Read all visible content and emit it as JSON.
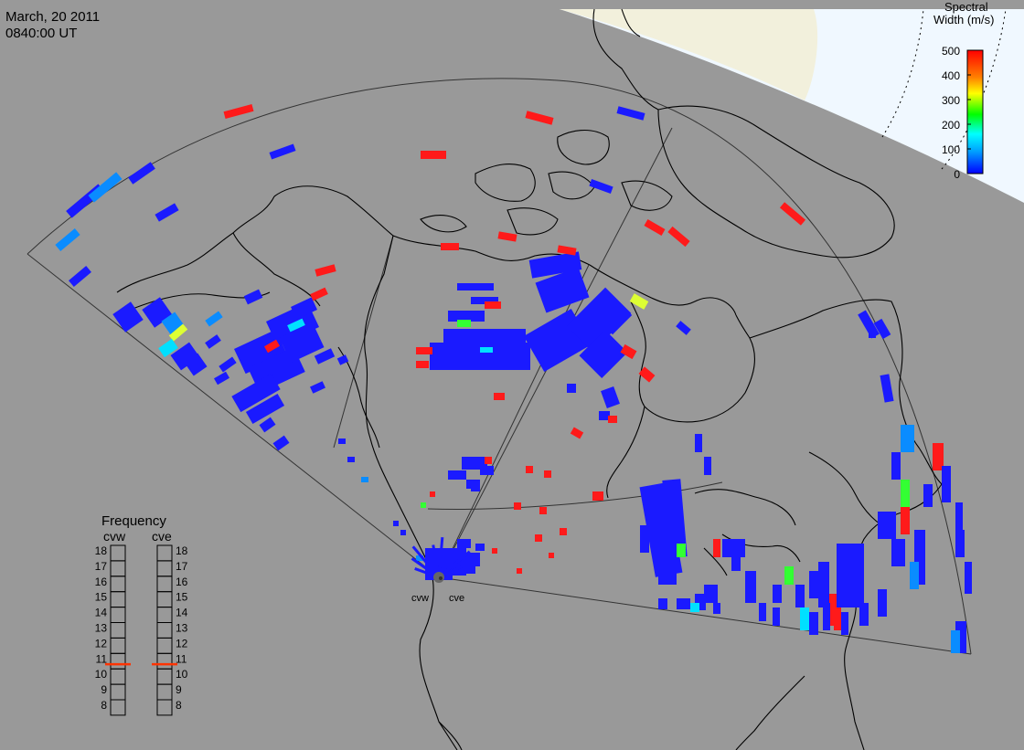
{
  "header": {
    "date": "March, 20 2011",
    "time": "0840:00 UT"
  },
  "colorbar": {
    "title_line1": "Spectral",
    "title_line2": "Width (m/s)",
    "ticks": [
      "500",
      "400",
      "300",
      "200",
      "100",
      "0"
    ],
    "range": [
      0,
      500
    ],
    "colors": [
      "#0000ff",
      "#00a0ff",
      "#00ffff",
      "#00ff00",
      "#ffff00",
      "#ff8000",
      "#ff0000"
    ]
  },
  "radars": {
    "west_label": "cvw",
    "east_label": "cve"
  },
  "frequency_panel": {
    "title": "Frequency",
    "left_label": "cvw",
    "right_label": "cve",
    "ticks": [
      "18",
      "17",
      "16",
      "15",
      "14",
      "13",
      "12",
      "11",
      "10",
      "9",
      "8"
    ],
    "range_mhz": [
      8,
      18
    ],
    "cvw_mhz": 10.8,
    "cve_mhz": 10.8,
    "marker_color": "#ff3300"
  },
  "colors": {
    "background": "#999999",
    "daylight": "#f0f8ff",
    "twilight": "#f2f0dc",
    "coastline": "#000000",
    "fov_outline": "#333333"
  }
}
